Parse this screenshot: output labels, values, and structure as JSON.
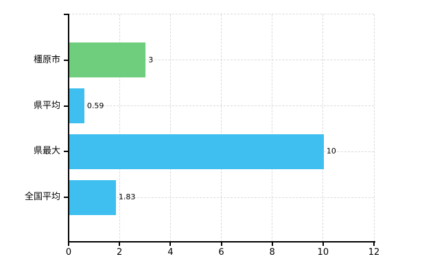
{
  "chart_data": {
    "type": "bar",
    "orientation": "horizontal",
    "title": "",
    "xlabel": "",
    "ylabel": "",
    "categories": [
      "橿原市",
      "県平均",
      "県最大",
      "全国平均"
    ],
    "values": [
      3,
      0.59,
      10,
      1.83
    ],
    "value_labels": [
      "3",
      "0.59",
      "10",
      "1.83"
    ],
    "bar_colors": [
      "#6ece7e",
      "#3fbfef",
      "#3fbfef",
      "#3fbfef"
    ],
    "xlim": [
      0,
      12
    ],
    "x_ticks": [
      "0",
      "2",
      "4",
      "6",
      "8",
      "10",
      "12"
    ],
    "x_tick_values": [
      0,
      2,
      4,
      6,
      8,
      10,
      12
    ],
    "grid": true,
    "legend": false,
    "colors": {
      "green_bar": "#6ece7e",
      "blue_bar": "#3fbfef",
      "grid": "#d9d9d9",
      "axis": "#000000",
      "text": "#000000",
      "background": "#ffffff"
    }
  }
}
